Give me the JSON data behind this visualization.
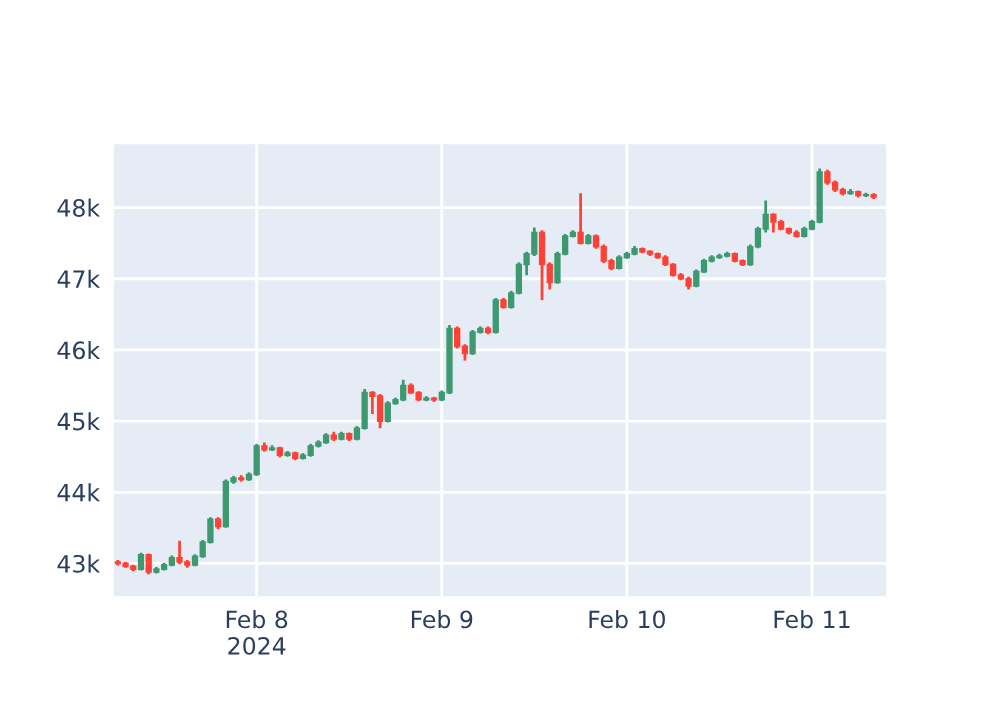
{
  "chart_data": {
    "type": "candlestick",
    "x": [
      "2024-02-07T06:00",
      "2024-02-07T07:00",
      "2024-02-07T08:00",
      "2024-02-07T09:00",
      "2024-02-07T10:00",
      "2024-02-07T11:00",
      "2024-02-07T12:00",
      "2024-02-07T13:00",
      "2024-02-07T14:00",
      "2024-02-07T15:00",
      "2024-02-07T16:00",
      "2024-02-07T17:00",
      "2024-02-07T18:00",
      "2024-02-07T19:00",
      "2024-02-07T20:00",
      "2024-02-07T21:00",
      "2024-02-07T22:00",
      "2024-02-07T23:00",
      "2024-02-08T00:00",
      "2024-02-08T01:00",
      "2024-02-08T02:00",
      "2024-02-08T03:00",
      "2024-02-08T04:00",
      "2024-02-08T05:00",
      "2024-02-08T06:00",
      "2024-02-08T07:00",
      "2024-02-08T08:00",
      "2024-02-08T09:00",
      "2024-02-08T10:00",
      "2024-02-08T11:00",
      "2024-02-08T12:00",
      "2024-02-08T13:00",
      "2024-02-08T14:00",
      "2024-02-08T15:00",
      "2024-02-08T16:00",
      "2024-02-08T17:00",
      "2024-02-08T18:00",
      "2024-02-08T19:00",
      "2024-02-08T20:00",
      "2024-02-08T21:00",
      "2024-02-08T22:00",
      "2024-02-08T23:00",
      "2024-02-09T00:00",
      "2024-02-09T01:00",
      "2024-02-09T02:00",
      "2024-02-09T03:00",
      "2024-02-09T04:00",
      "2024-02-09T05:00",
      "2024-02-09T06:00",
      "2024-02-09T07:00",
      "2024-02-09T08:00",
      "2024-02-09T09:00",
      "2024-02-09T10:00",
      "2024-02-09T11:00",
      "2024-02-09T12:00",
      "2024-02-09T13:00",
      "2024-02-09T14:00",
      "2024-02-09T15:00",
      "2024-02-09T16:00",
      "2024-02-09T17:00",
      "2024-02-09T18:00",
      "2024-02-09T19:00",
      "2024-02-09T20:00",
      "2024-02-09T21:00",
      "2024-02-09T22:00",
      "2024-02-09T23:00",
      "2024-02-10T00:00",
      "2024-02-10T01:00",
      "2024-02-10T02:00",
      "2024-02-10T03:00",
      "2024-02-10T04:00",
      "2024-02-10T05:00",
      "2024-02-10T06:00",
      "2024-02-10T07:00",
      "2024-02-10T08:00",
      "2024-02-10T09:00",
      "2024-02-10T10:00",
      "2024-02-10T11:00",
      "2024-02-10T12:00",
      "2024-02-10T13:00",
      "2024-02-10T14:00",
      "2024-02-10T15:00",
      "2024-02-10T16:00",
      "2024-02-10T17:00",
      "2024-02-10T18:00",
      "2024-02-10T19:00",
      "2024-02-10T20:00",
      "2024-02-10T21:00",
      "2024-02-10T22:00",
      "2024-02-10T23:00",
      "2024-02-11T00:00",
      "2024-02-11T01:00",
      "2024-02-11T02:00",
      "2024-02-11T03:00",
      "2024-02-11T04:00",
      "2024-02-11T05:00",
      "2024-02-11T06:00",
      "2024-02-11T07:00",
      "2024-02-11T08:00"
    ],
    "ohlc": [
      [
        43020,
        43050,
        42970,
        43000
      ],
      [
        43000,
        43020,
        42940,
        42960
      ],
      [
        42960,
        42980,
        42890,
        42920
      ],
      [
        42920,
        43150,
        42900,
        43120
      ],
      [
        43120,
        43140,
        42850,
        42880
      ],
      [
        42880,
        42950,
        42860,
        42920
      ],
      [
        42920,
        43010,
        42900,
        42980
      ],
      [
        42980,
        43110,
        42960,
        43080
      ],
      [
        43080,
        43320,
        42990,
        43020
      ],
      [
        43020,
        43050,
        42940,
        42980
      ],
      [
        42980,
        43130,
        42960,
        43100
      ],
      [
        43100,
        43330,
        43080,
        43300
      ],
      [
        43300,
        43650,
        43280,
        43620
      ],
      [
        43620,
        43650,
        43480,
        43520
      ],
      [
        43520,
        44180,
        43500,
        44150
      ],
      [
        44150,
        44230,
        44120,
        44200
      ],
      [
        44200,
        44240,
        44150,
        44180
      ],
      [
        44180,
        44280,
        44160,
        44250
      ],
      [
        44250,
        44680,
        44230,
        44650
      ],
      [
        44650,
        44700,
        44570,
        44600
      ],
      [
        44600,
        44660,
        44580,
        44620
      ],
      [
        44620,
        44640,
        44490,
        44520
      ],
      [
        44520,
        44580,
        44500,
        44550
      ],
      [
        44550,
        44570,
        44450,
        44480
      ],
      [
        44480,
        44550,
        44460,
        44520
      ],
      [
        44520,
        44680,
        44500,
        44650
      ],
      [
        44650,
        44730,
        44630,
        44700
      ],
      [
        44700,
        44830,
        44680,
        44800
      ],
      [
        44800,
        44850,
        44720,
        44750
      ],
      [
        44750,
        44850,
        44730,
        44820
      ],
      [
        44820,
        44840,
        44720,
        44750
      ],
      [
        44750,
        44930,
        44730,
        44900
      ],
      [
        44900,
        45450,
        44880,
        45400
      ],
      [
        45400,
        45420,
        45100,
        45350
      ],
      [
        45350,
        45380,
        44900,
        45000
      ],
      [
        45000,
        45280,
        44980,
        45250
      ],
      [
        45250,
        45330,
        45230,
        45300
      ],
      [
        45300,
        45580,
        45280,
        45500
      ],
      [
        45500,
        45530,
        45380,
        45400
      ],
      [
        45400,
        45420,
        45280,
        45300
      ],
      [
        45300,
        45350,
        45280,
        45320
      ],
      [
        45320,
        45340,
        45270,
        45300
      ],
      [
        45300,
        45430,
        45280,
        45400
      ],
      [
        45400,
        46350,
        45380,
        46300
      ],
      [
        46300,
        46330,
        46020,
        46050
      ],
      [
        46050,
        46080,
        45850,
        45950
      ],
      [
        45950,
        46280,
        45930,
        46250
      ],
      [
        46250,
        46330,
        46230,
        46300
      ],
      [
        46300,
        46330,
        46220,
        46250
      ],
      [
        46250,
        46730,
        46230,
        46700
      ],
      [
        46700,
        46730,
        46580,
        46600
      ],
      [
        46600,
        46830,
        46580,
        46800
      ],
      [
        46800,
        47230,
        46780,
        47200
      ],
      [
        47200,
        47380,
        47050,
        47350
      ],
      [
        47350,
        47720,
        47320,
        47650
      ],
      [
        47650,
        47680,
        46700,
        47200
      ],
      [
        47200,
        47230,
        46850,
        46950
      ],
      [
        46950,
        47380,
        46930,
        47350
      ],
      [
        47350,
        47630,
        47330,
        47600
      ],
      [
        47600,
        47680,
        47580,
        47650
      ],
      [
        47650,
        48200,
        47480,
        47500
      ],
      [
        47500,
        47630,
        47480,
        47600
      ],
      [
        47600,
        47620,
        47420,
        47450
      ],
      [
        47450,
        47480,
        47220,
        47250
      ],
      [
        47250,
        47280,
        47120,
        47150
      ],
      [
        47150,
        47330,
        47130,
        47300
      ],
      [
        47300,
        47380,
        47280,
        47350
      ],
      [
        47350,
        47460,
        47330,
        47420
      ],
      [
        47420,
        47440,
        47360,
        47380
      ],
      [
        47380,
        47400,
        47320,
        47350
      ],
      [
        47350,
        47370,
        47280,
        47300
      ],
      [
        47300,
        47330,
        47180,
        47200
      ],
      [
        47200,
        47220,
        47030,
        47050
      ],
      [
        47050,
        47080,
        46980,
        47000
      ],
      [
        47000,
        47030,
        46850,
        46900
      ],
      [
        46900,
        47130,
        46880,
        47100
      ],
      [
        47100,
        47280,
        47080,
        47250
      ],
      [
        47250,
        47330,
        47230,
        47300
      ],
      [
        47300,
        47350,
        47280,
        47320
      ],
      [
        47320,
        47380,
        47300,
        47350
      ],
      [
        47350,
        47370,
        47230,
        47250
      ],
      [
        47250,
        47270,
        47180,
        47200
      ],
      [
        47200,
        47480,
        47180,
        47450
      ],
      [
        47450,
        47730,
        47430,
        47700
      ],
      [
        47700,
        48100,
        47650,
        47900
      ],
      [
        47900,
        47920,
        47650,
        47800
      ],
      [
        47800,
        47830,
        47680,
        47700
      ],
      [
        47700,
        47720,
        47620,
        47650
      ],
      [
        47650,
        47680,
        47580,
        47600
      ],
      [
        47600,
        47730,
        47580,
        47700
      ],
      [
        47700,
        47830,
        47680,
        47800
      ],
      [
        47800,
        48550,
        47780,
        48500
      ],
      [
        48500,
        48530,
        48320,
        48350
      ],
      [
        48350,
        48380,
        48220,
        48250
      ],
      [
        48250,
        48280,
        48170,
        48200
      ],
      [
        48200,
        48260,
        48180,
        48220
      ],
      [
        48220,
        48240,
        48140,
        48170
      ],
      [
        48170,
        48210,
        48150,
        48180
      ],
      [
        48180,
        48200,
        48120,
        48150
      ]
    ],
    "colors": [
      "#ff4136",
      "#ff4136",
      "#ff4136",
      "#3d9970",
      "#ff4136",
      "#3d9970",
      "#3d9970",
      "#3d9970",
      "#ff4136",
      "#ff4136",
      "#3d9970",
      "#3d9970",
      "#3d9970",
      "#ff4136",
      "#3d9970",
      "#3d9970",
      "#ff4136",
      "#3d9970",
      "#3d9970",
      "#ff4136",
      "#3d9970",
      "#ff4136",
      "#3d9970",
      "#ff4136",
      "#3d9970",
      "#3d9970",
      "#3d9970",
      "#3d9970",
      "#ff4136",
      "#3d9970",
      "#ff4136",
      "#3d9970",
      "#3d9970",
      "#ff4136",
      "#ff4136",
      "#3d9970",
      "#3d9970",
      "#3d9970",
      "#ff4136",
      "#ff4136",
      "#3d9970",
      "#ff4136",
      "#3d9970",
      "#3d9970",
      "#ff4136",
      "#ff4136",
      "#3d9970",
      "#3d9970",
      "#ff4136",
      "#3d9970",
      "#ff4136",
      "#3d9970",
      "#3d9970",
      "#3d9970",
      "#3d9970",
      "#ff4136",
      "#ff4136",
      "#3d9970",
      "#3d9970",
      "#3d9970",
      "#ff4136",
      "#3d9970",
      "#ff4136",
      "#ff4136",
      "#ff4136",
      "#3d9970",
      "#3d9970",
      "#3d9970",
      "#ff4136",
      "#ff4136",
      "#ff4136",
      "#ff4136",
      "#ff4136",
      "#ff4136",
      "#ff4136",
      "#3d9970",
      "#3d9970",
      "#3d9970",
      "#3d9970",
      "#3d9970",
      "#ff4136",
      "#ff4136",
      "#3d9970",
      "#3d9970",
      "#3d9970",
      "#ff4136",
      "#ff4136",
      "#ff4136",
      "#ff4136",
      "#3d9970",
      "#3d9970",
      "#3d9970",
      "#ff4136",
      "#ff4136",
      "#ff4136",
      "#3d9970",
      "#ff4136",
      "#3d9970",
      "#ff4136"
    ],
    "xlim": [
      "2024-02-07T05:30",
      "2024-02-11T09:36"
    ],
    "xticks": [
      {
        "value": "2024-02-08",
        "label": "Feb 8\n2024"
      },
      {
        "value": "2024-02-09",
        "label": "Feb 9"
      },
      {
        "value": "2024-02-10",
        "label": "Feb 10"
      },
      {
        "value": "2024-02-11",
        "label": "Feb 11"
      }
    ],
    "ylim": [
      42540,
      48890
    ],
    "yticks": [
      {
        "value": 43000,
        "label": "43k"
      },
      {
        "value": 44000,
        "label": "44k"
      },
      {
        "value": 45000,
        "label": "45k"
      },
      {
        "value": 46000,
        "label": "46k"
      },
      {
        "value": 47000,
        "label": "47k"
      },
      {
        "value": 48000,
        "label": "48k"
      }
    ],
    "grid": true
  }
}
